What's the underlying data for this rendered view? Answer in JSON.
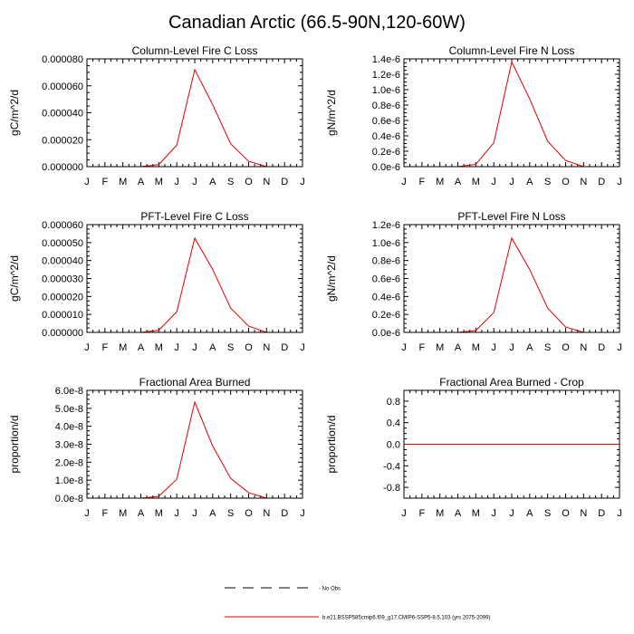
{
  "page_title": "Canadian Arctic (66.5-90N,120-60W)",
  "legend": {
    "obs_label": "No Obs",
    "model_label": "b.e21.BSSP585cmip6.f09_g17.CMIP6-SSP5-8.5.103 (yrs 2075-2099)",
    "obs_color": "#000000",
    "model_color": "#e00000"
  },
  "chart_data": [
    {
      "type": "line",
      "title": "Column-Level Fire C Loss",
      "ylabel": "gC/m^2/d",
      "categories": [
        "J",
        "F",
        "M",
        "A",
        "M",
        "J",
        "J",
        "A",
        "S",
        "O",
        "N",
        "D",
        "J"
      ],
      "ylim": [
        0,
        8e-05
      ],
      "yticks": [
        0,
        2e-05,
        4e-05,
        6e-05,
        8e-05
      ],
      "ytick_labels": [
        "0.000000",
        "0.000020",
        "0.000040",
        "0.000060",
        "0.000080"
      ],
      "series": [
        {
          "name": "model",
          "color": "#e00000",
          "values": [
            0,
            0,
            0,
            0,
            1.5e-06,
            1.6e-05,
            7.2e-05,
            4.6e-05,
            1.7e-05,
            4e-06,
            0,
            0,
            0
          ]
        }
      ]
    },
    {
      "type": "line",
      "title": "Column-Level Fire N Loss",
      "ylabel": "gN/m^2/d",
      "categories": [
        "J",
        "F",
        "M",
        "A",
        "M",
        "J",
        "J",
        "A",
        "S",
        "O",
        "N",
        "D",
        "J"
      ],
      "ylim": [
        0,
        1.4e-06
      ],
      "yticks": [
        0,
        2e-07,
        4e-07,
        6e-07,
        8e-07,
        1e-06,
        1.2e-06,
        1.4e-06
      ],
      "ytick_labels": [
        "0.0e-6",
        "0.2e-6",
        "0.4e-6",
        "0.6e-6",
        "0.8e-6",
        "1.0e-6",
        "1.2e-6",
        "1.4e-6"
      ],
      "series": [
        {
          "name": "model",
          "color": "#e00000",
          "values": [
            0,
            0,
            0,
            0,
            3e-08,
            3.1e-07,
            1.36e-06,
            8.8e-07,
            3.3e-07,
            8e-08,
            0,
            0,
            0
          ]
        }
      ]
    },
    {
      "type": "line",
      "title": "PFT-Level Fire C Loss",
      "ylabel": "gC/m^2/d",
      "categories": [
        "J",
        "F",
        "M",
        "A",
        "M",
        "J",
        "J",
        "A",
        "S",
        "O",
        "N",
        "D",
        "J"
      ],
      "ylim": [
        0,
        6e-05
      ],
      "yticks": [
        0,
        1e-05,
        2e-05,
        3e-05,
        4e-05,
        5e-05,
        6e-05
      ],
      "ytick_labels": [
        "0.000000",
        "0.000010",
        "0.000020",
        "0.000030",
        "0.000040",
        "0.000050",
        "0.000060"
      ],
      "series": [
        {
          "name": "model",
          "color": "#e00000",
          "values": [
            0,
            0,
            0,
            0,
            1.2e-06,
            1.15e-05,
            5.25e-05,
            3.5e-05,
            1.35e-05,
            3.5e-06,
            0,
            0,
            0
          ]
        }
      ]
    },
    {
      "type": "line",
      "title": "PFT-Level Fire N Loss",
      "ylabel": "gN/m^2/d",
      "categories": [
        "J",
        "F",
        "M",
        "A",
        "M",
        "J",
        "J",
        "A",
        "S",
        "O",
        "N",
        "D",
        "J"
      ],
      "ylim": [
        0,
        1.2e-06
      ],
      "yticks": [
        0,
        2e-07,
        4e-07,
        6e-07,
        8e-07,
        1e-06,
        1.2e-06
      ],
      "ytick_labels": [
        "0.0e-6",
        "0.2e-6",
        "0.4e-6",
        "0.6e-6",
        "0.8e-6",
        "1.0e-6",
        "1.2e-6"
      ],
      "series": [
        {
          "name": "model",
          "color": "#e00000",
          "values": [
            0,
            0,
            0,
            0,
            2e-08,
            2.2e-07,
            1.05e-06,
            7e-07,
            2.7e-07,
            6e-08,
            0,
            0,
            0
          ]
        }
      ]
    },
    {
      "type": "line",
      "title": "Fractional Area Burned",
      "ylabel": "proportion/d",
      "categories": [
        "J",
        "F",
        "M",
        "A",
        "M",
        "J",
        "J",
        "A",
        "S",
        "O",
        "N",
        "D",
        "J"
      ],
      "ylim": [
        0,
        6e-08
      ],
      "yticks": [
        0,
        1e-08,
        2e-08,
        3e-08,
        4e-08,
        5e-08,
        6e-08
      ],
      "ytick_labels": [
        "0.0e-8",
        "1.0e-8",
        "2.0e-8",
        "3.0e-8",
        "4.0e-8",
        "5.0e-8",
        "6.0e-8"
      ],
      "series": [
        {
          "name": "model",
          "color": "#e00000",
          "values": [
            0,
            0,
            0,
            0,
            1e-09,
            1.05e-08,
            5.35e-08,
            2.9e-08,
            1.1e-08,
            3e-09,
            0,
            0,
            0
          ]
        }
      ]
    },
    {
      "type": "line",
      "title": "Fractional Area Burned - Crop",
      "ylabel": "proportion/d",
      "categories": [
        "J",
        "F",
        "M",
        "A",
        "M",
        "J",
        "J",
        "A",
        "S",
        "O",
        "N",
        "D",
        "J"
      ],
      "ylim": [
        -1,
        1
      ],
      "yticks": [
        -0.8,
        -0.4,
        0,
        0.4,
        0.8
      ],
      "ytick_labels": [
        "-0.8",
        "-0.4",
        "0.0",
        "0.4",
        "0.8"
      ],
      "series": [
        {
          "name": "model",
          "color": "#e00000",
          "values": [
            0,
            0,
            0,
            0,
            0,
            0,
            0,
            0,
            0,
            0,
            0,
            0,
            0
          ]
        }
      ]
    }
  ]
}
